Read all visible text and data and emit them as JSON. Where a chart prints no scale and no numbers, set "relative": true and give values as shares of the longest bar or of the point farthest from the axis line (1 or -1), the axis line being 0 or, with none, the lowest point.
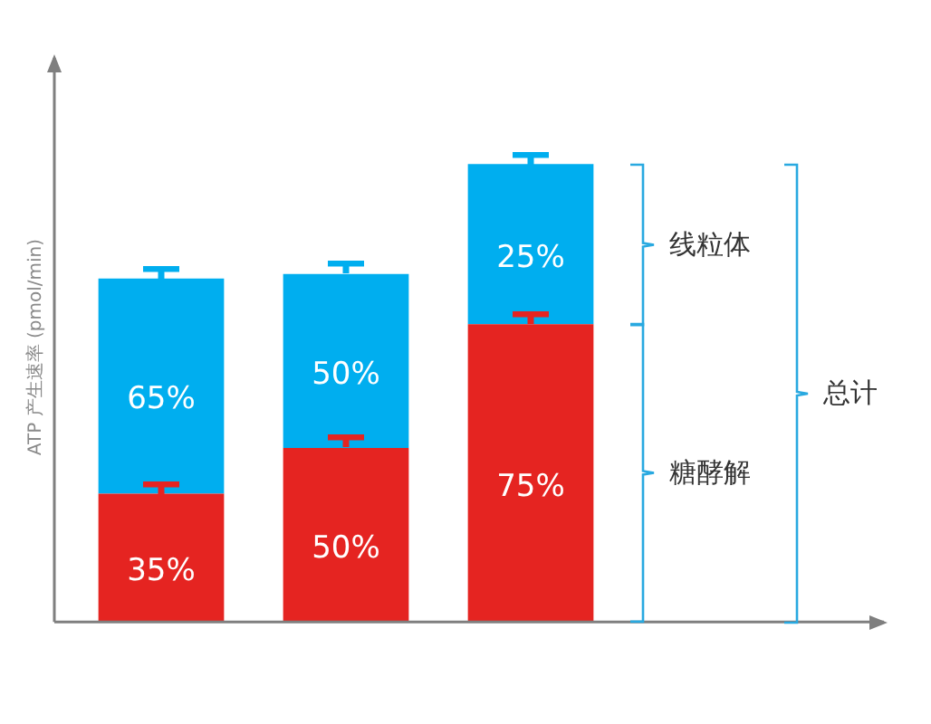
{
  "chart_data": {
    "type": "bar",
    "stacked": true,
    "relative": true,
    "ylabel": "ATP 产生速率 (pmol/min)",
    "categories": [
      null,
      null,
      null
    ],
    "series": [
      {
        "color": "#e52421",
        "values": [
          0.28,
          0.38,
          0.65
        ]
      },
      {
        "color": "#00aeef",
        "values": [
          0.47,
          0.38,
          0.35
        ]
      }
    ],
    "annotations": [
      "35%",
      "50%",
      "75%",
      "65%",
      "50%",
      "25%",
      "线粒体",
      "糖酵解",
      "总计"
    ],
    "grid": false,
    "legend": false
  }
}
